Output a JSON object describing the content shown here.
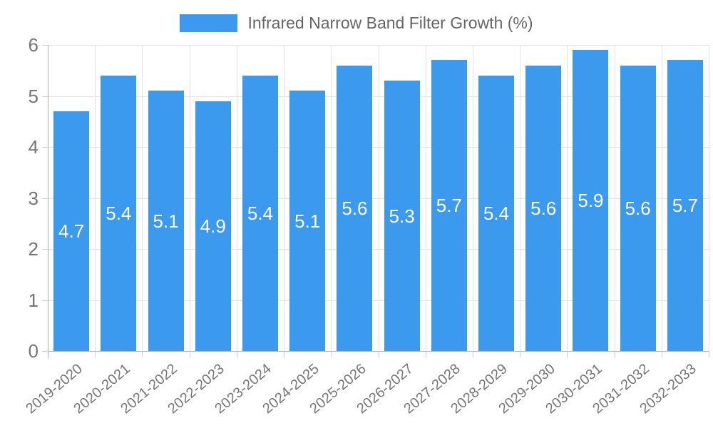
{
  "legend": {
    "label": "Infrared Narrow Band Filter Growth (%)"
  },
  "chart_data": {
    "type": "bar",
    "title": "Infrared Narrow Band Filter Growth (%)",
    "categories": [
      "2019-2020",
      "2020-2021",
      "2021-2022",
      "2022-2023",
      "2023-2024",
      "2024-2025",
      "2025-2026",
      "2026-2027",
      "2027-2028",
      "2028-2029",
      "2029-2030",
      "2030-2031",
      "2031-2032",
      "2032-2033"
    ],
    "values": [
      4.7,
      5.4,
      5.1,
      4.9,
      5.4,
      5.1,
      5.6,
      5.3,
      5.7,
      5.4,
      5.6,
      5.9,
      5.6,
      5.7
    ],
    "xlabel": "",
    "ylabel": "",
    "ylim": [
      0,
      6
    ],
    "yticks": [
      0,
      1,
      2,
      3,
      4,
      5,
      6
    ],
    "grid": true,
    "legend_position": "top",
    "bar_color": "#3B99EE",
    "value_label_color": "#FFFFFF"
  },
  "colors": {
    "bar": "#3B99EE",
    "grid_line": "#E3E3E3",
    "axis_line": "#B0B0B0",
    "tick_mark": "#D0D0D0",
    "tick_text": "#757575",
    "legend_text": "#666666",
    "background": "#FFFFFF"
  }
}
